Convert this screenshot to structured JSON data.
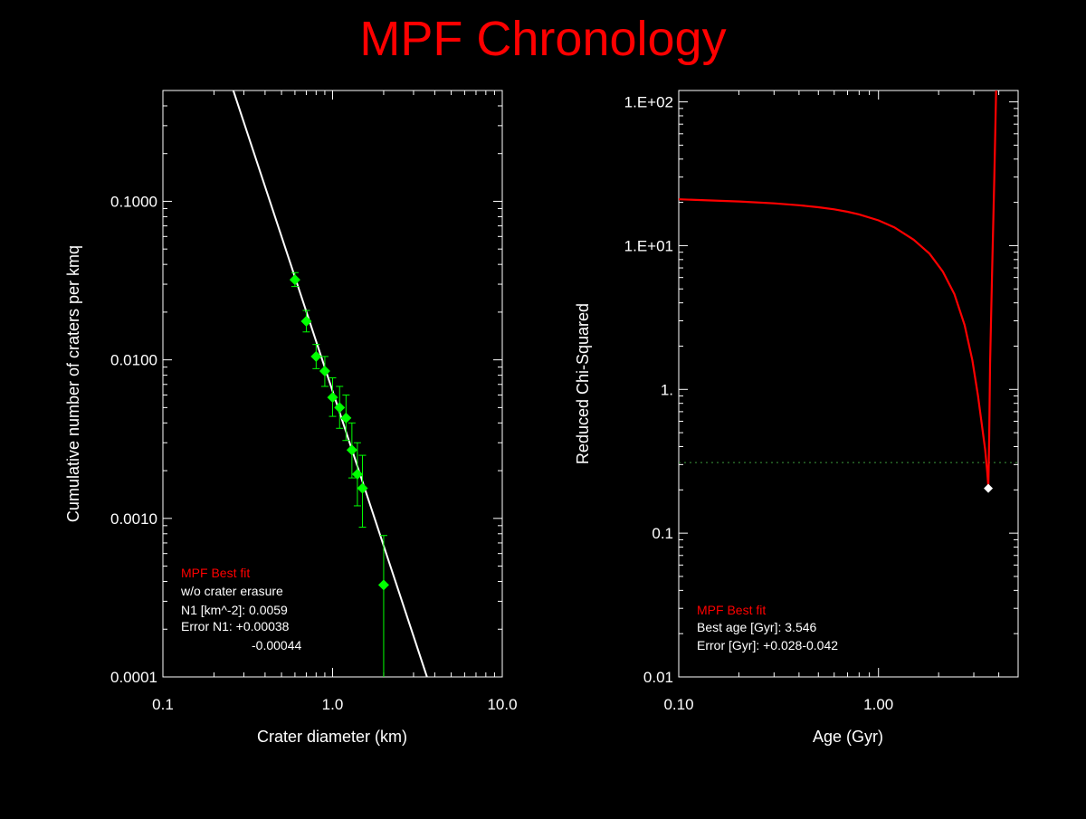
{
  "title": "MPF Chronology",
  "colors": {
    "background": "#000000",
    "axis": "#ffffff",
    "title": "#ff0000",
    "data": "#00ff00",
    "fit": "#ffffff",
    "chi_curve": "#ff0000",
    "label_red": "#ff0000"
  },
  "chart_data": [
    {
      "type": "scatter",
      "xlabel": "Crater diameter (km)",
      "ylabel": "Cumulative number of craters per kmq",
      "x_scale": "log",
      "y_scale": "log",
      "xlim": [
        0.1,
        10.0
      ],
      "ylim": [
        0.0001,
        0.5
      ],
      "x_ticks": [
        {
          "v": 0.1,
          "label": "0.1"
        },
        {
          "v": 1.0,
          "label": "1.0"
        },
        {
          "v": 10.0,
          "label": "10.0"
        }
      ],
      "y_ticks": [
        {
          "v": 0.0001,
          "label": "0.0001"
        },
        {
          "v": 0.001,
          "label": "0.0010"
        },
        {
          "v": 0.01,
          "label": "0.0100"
        },
        {
          "v": 0.1,
          "label": "0.1000"
        }
      ],
      "points": [
        {
          "x": 0.6,
          "y": 0.032,
          "lo": 0.029,
          "hi": 0.0355
        },
        {
          "x": 0.7,
          "y": 0.0175,
          "lo": 0.015,
          "hi": 0.0205
        },
        {
          "x": 0.8,
          "y": 0.0105,
          "lo": 0.0088,
          "hi": 0.0125
        },
        {
          "x": 0.9,
          "y": 0.0085,
          "lo": 0.0068,
          "hi": 0.0105
        },
        {
          "x": 1.0,
          "y": 0.0058,
          "lo": 0.0044,
          "hi": 0.0077
        },
        {
          "x": 1.1,
          "y": 0.005,
          "lo": 0.0037,
          "hi": 0.0068
        },
        {
          "x": 1.2,
          "y": 0.0043,
          "lo": 0.0031,
          "hi": 0.006
        },
        {
          "x": 1.3,
          "y": 0.0027,
          "lo": 0.0018,
          "hi": 0.004
        },
        {
          "x": 1.4,
          "y": 0.0019,
          "lo": 0.0012,
          "hi": 0.003
        },
        {
          "x": 1.5,
          "y": 0.00155,
          "lo": 0.00088,
          "hi": 0.0025
        },
        {
          "x": 2.0,
          "y": 0.00038,
          "lo": 0.0001,
          "hi": 0.00078
        }
      ],
      "fit_line": [
        {
          "x": 0.26,
          "y": 0.5
        },
        {
          "x": 3.6,
          "y": 0.0001
        }
      ],
      "annotation": {
        "line1": "MPF Best fit",
        "line2": "w/o crater erasure",
        "line3": "N1 [km^-2]: 0.0059",
        "line4": "Error N1: +0.00038",
        "line5": "-0.00044"
      }
    },
    {
      "type": "line",
      "xlabel": "Age (Gyr)",
      "ylabel": "Reduced Chi-Squared",
      "x_scale": "log",
      "y_scale": "log",
      "xlim": [
        0.1,
        5.0
      ],
      "ylim": [
        0.01,
        120
      ],
      "x_ticks": [
        {
          "v": 0.1,
          "label": "0.10"
        },
        {
          "v": 1.0,
          "label": "1.00"
        }
      ],
      "y_ticks": [
        {
          "v": 0.01,
          "label": "0.01"
        },
        {
          "v": 0.1,
          "label": "0.1"
        },
        {
          "v": 1,
          "label": "1."
        },
        {
          "v": 10,
          "label": "1.E+01"
        },
        {
          "v": 100,
          "label": "1.E+02"
        }
      ],
      "curve": [
        {
          "x": 0.1,
          "y": 21.0
        },
        {
          "x": 0.15,
          "y": 20.6
        },
        {
          "x": 0.2,
          "y": 20.3
        },
        {
          "x": 0.3,
          "y": 19.7
        },
        {
          "x": 0.4,
          "y": 19.1
        },
        {
          "x": 0.5,
          "y": 18.5
        },
        {
          "x": 0.6,
          "y": 17.9
        },
        {
          "x": 0.7,
          "y": 17.2
        },
        {
          "x": 0.8,
          "y": 16.5
        },
        {
          "x": 1.0,
          "y": 15.0
        },
        {
          "x": 1.2,
          "y": 13.4
        },
        {
          "x": 1.5,
          "y": 11.0
        },
        {
          "x": 1.8,
          "y": 8.8
        },
        {
          "x": 2.1,
          "y": 6.6
        },
        {
          "x": 2.4,
          "y": 4.6
        },
        {
          "x": 2.7,
          "y": 2.8
        },
        {
          "x": 2.95,
          "y": 1.6
        },
        {
          "x": 3.15,
          "y": 0.9
        },
        {
          "x": 3.3,
          "y": 0.55
        },
        {
          "x": 3.42,
          "y": 0.38
        },
        {
          "x": 3.5,
          "y": 0.27
        },
        {
          "x": 3.546,
          "y": 0.21
        },
        {
          "x": 3.58,
          "y": 0.45
        },
        {
          "x": 3.62,
          "y": 1.5
        },
        {
          "x": 3.7,
          "y": 6.0
        },
        {
          "x": 3.8,
          "y": 30.0
        },
        {
          "x": 3.88,
          "y": 120.0
        }
      ],
      "threshold": 0.31,
      "best_point": {
        "x": 3.546,
        "y": 0.205
      },
      "annotation": {
        "line1": "MPF Best fit",
        "line2": "Best age [Gyr]: 3.546",
        "line3": "Error [Gyr]: +0.028-0.042"
      }
    }
  ]
}
